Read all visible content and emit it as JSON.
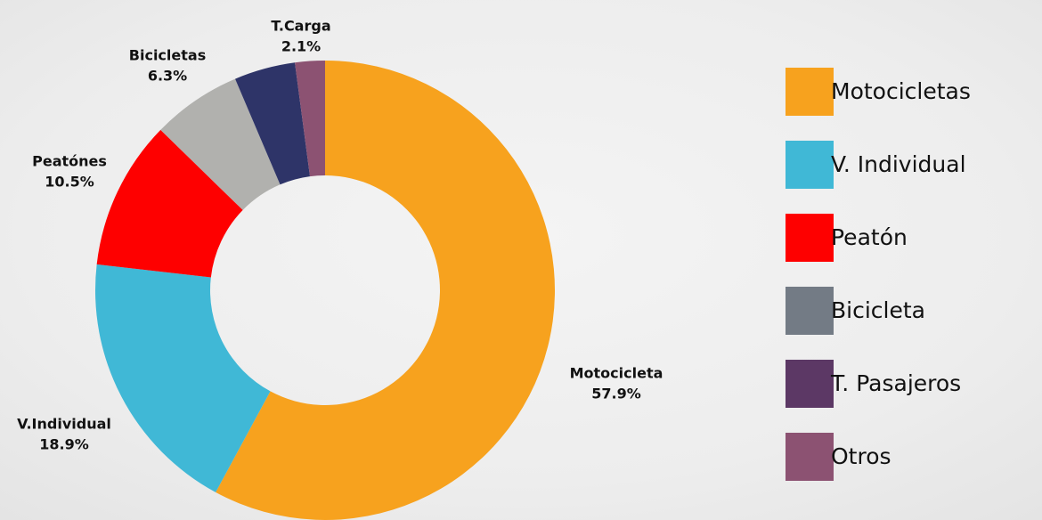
{
  "chart_data": {
    "type": "donut",
    "categories": [
      "Motocicleta",
      "V.Individual",
      "Peatónes",
      "Bicicletas",
      null,
      "T.Carga"
    ],
    "values": [
      57.9,
      18.9,
      10.5,
      6.3,
      4.3,
      2.1
    ],
    "value_labels": [
      "57.9%",
      "18.9%",
      "10.5%",
      "6.3%",
      null,
      "2.1%"
    ],
    "colors": [
      "#f7a21e",
      "#40b8d6",
      "#fe0000",
      "#b1b1ae",
      "#2e3468",
      "#8c5272"
    ],
    "legend": [
      {
        "name": "Motocicletas",
        "color": "#f7a21e"
      },
      {
        "name": "V. Individual",
        "color": "#40b8d6"
      },
      {
        "name": "Peatón",
        "color": "#fe0000"
      },
      {
        "name": "Bicicleta",
        "color": "#737b85"
      },
      {
        "name": "T. Pasajeros",
        "color": "#5c3865"
      },
      {
        "name": "Otros",
        "color": "#8c5272"
      }
    ]
  }
}
